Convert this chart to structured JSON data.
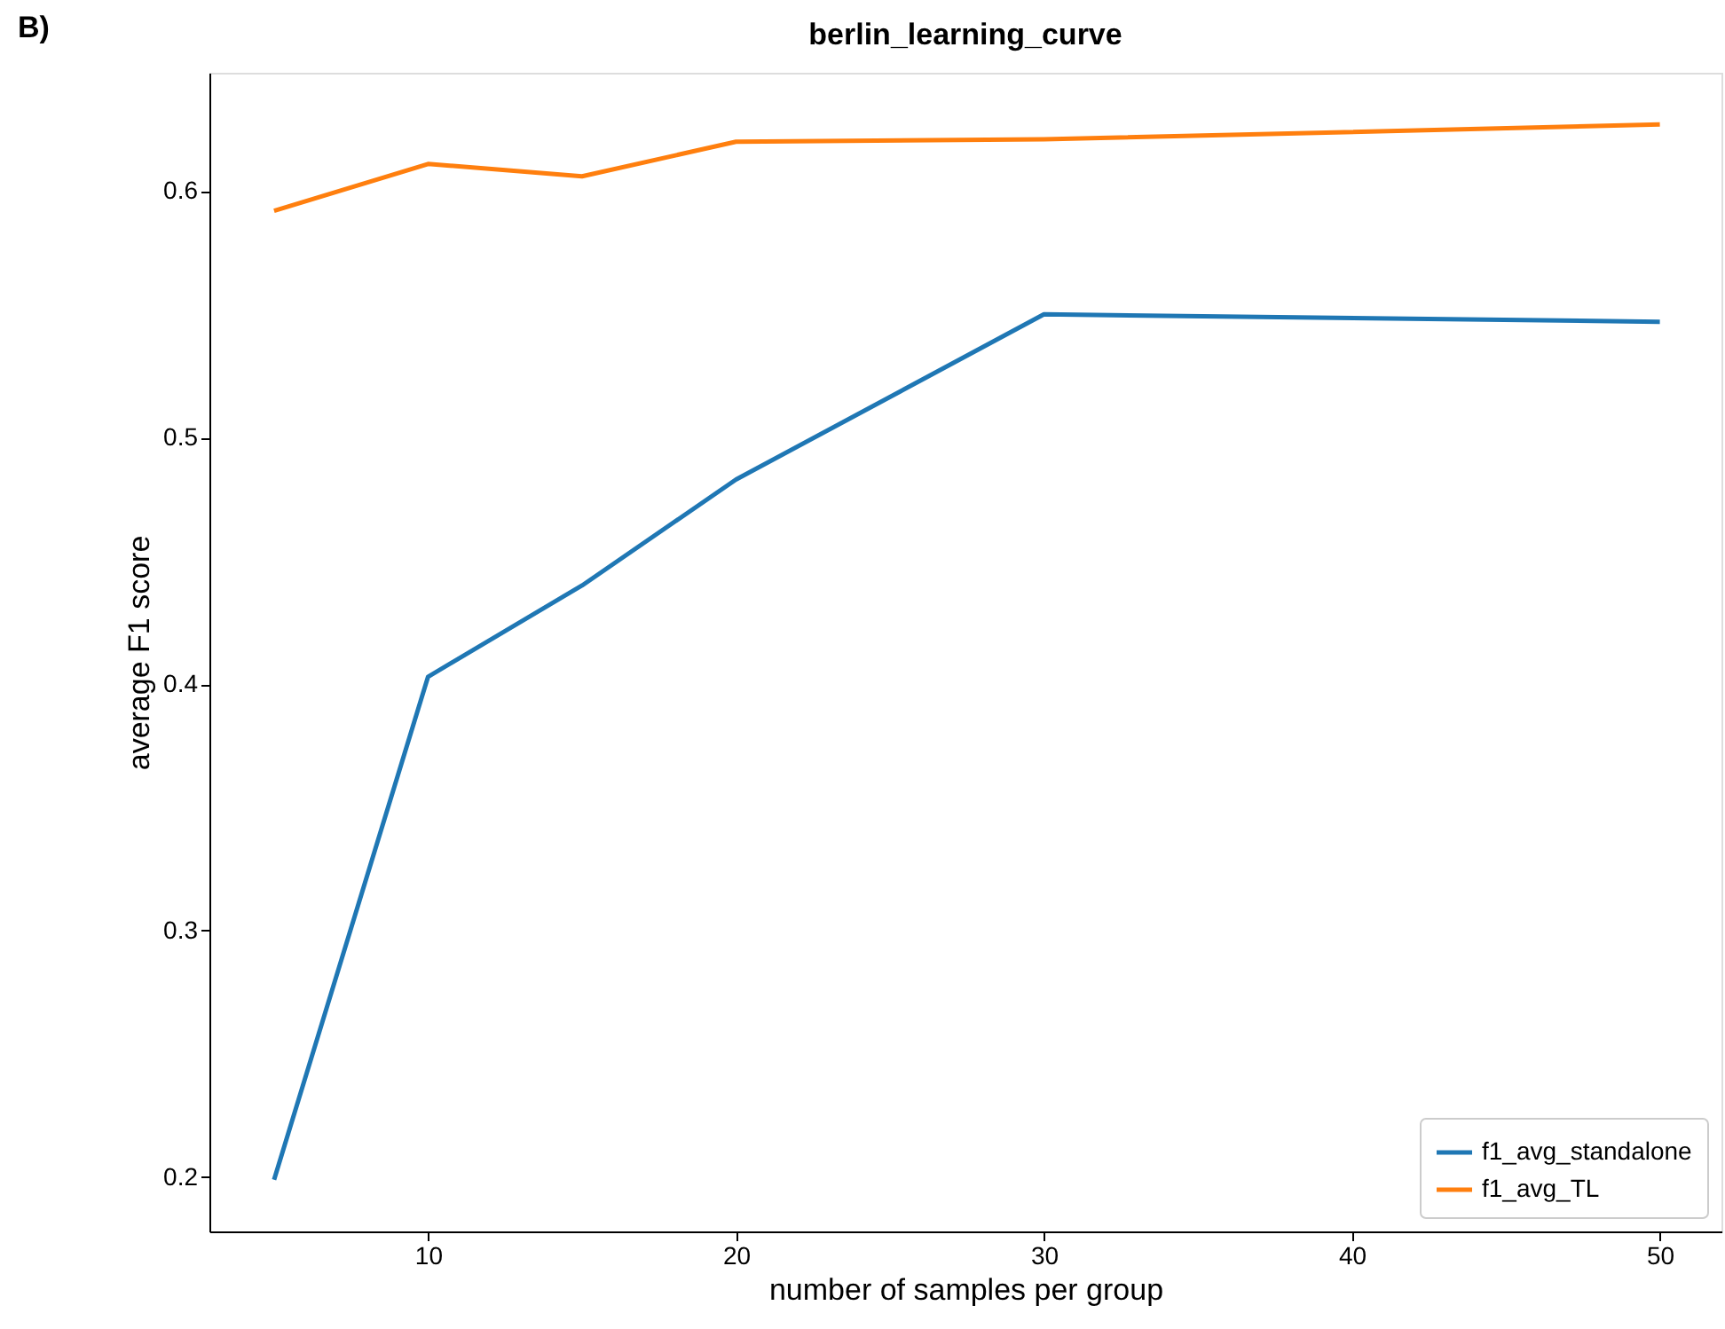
{
  "chart_data": {
    "type": "line",
    "title": "berlin_learning_curve",
    "xlabel": "number of samples per group",
    "ylabel": "average F1 score",
    "annotations": [
      "B)"
    ],
    "x": [
      5,
      10,
      15,
      20,
      30,
      50
    ],
    "series": [
      {
        "name": "f1_avg_standalone",
        "color": "#1f77b4",
        "values": [
          0.199,
          0.403,
          0.44,
          0.483,
          0.55,
          0.547
        ]
      },
      {
        "name": "f1_avg_TL",
        "color": "#ff7f0e",
        "values": [
          0.592,
          0.611,
          0.606,
          0.62,
          0.621,
          0.627
        ]
      }
    ],
    "xlim": [
      2.9,
      52
    ],
    "xticks": [
      10,
      20,
      30,
      40,
      50
    ],
    "ylim": [
      0.178,
      0.648
    ],
    "yticks": [
      0.2,
      0.3,
      0.4,
      0.5,
      0.6
    ],
    "grid": false,
    "legend": "bottom right",
    "marker": "none",
    "line_style": "solid"
  }
}
